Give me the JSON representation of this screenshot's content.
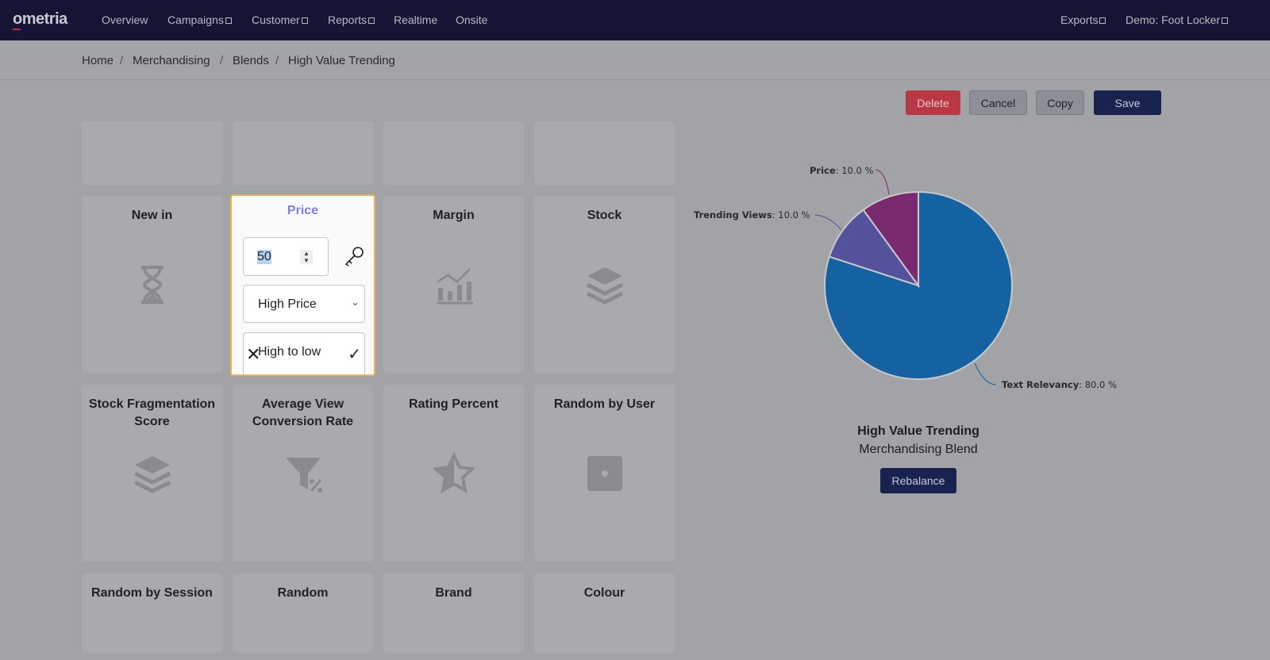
{
  "nav": {
    "logo": "ometria",
    "items": [
      "Overview",
      "Campaigns",
      "Customer",
      "Reports",
      "Realtime",
      "Onsite"
    ],
    "exports": "Exports",
    "account": "Demo: Foot Locker"
  },
  "breadcrumb": [
    "Home",
    "Merchandising",
    "Blends",
    "High Value Trending"
  ],
  "actions": {
    "delete": "Delete",
    "cancel": "Cancel",
    "copy": "Copy",
    "save": "Save"
  },
  "cards": [
    {
      "title": "",
      "icon": ""
    },
    {
      "title": "",
      "icon": ""
    },
    {
      "title": "",
      "icon": ""
    },
    {
      "title": "",
      "icon": ""
    },
    {
      "title": "New in",
      "icon": "hourglass-icon"
    },
    {
      "title": "Price",
      "icon": ""
    },
    {
      "title": "Margin",
      "icon": "chart-icon"
    },
    {
      "title": "Stock",
      "icon": "layers-icon"
    },
    {
      "title": "Stock Fragmentation Score",
      "icon": "layers-icon"
    },
    {
      "title": "Average View Conversion Rate",
      "icon": "funnel-percent-icon"
    },
    {
      "title": "Rating Percent",
      "icon": "star-icon"
    },
    {
      "title": "Random by User",
      "icon": "dice-icon"
    },
    {
      "title": "Random by Session",
      "icon": ""
    },
    {
      "title": "Random",
      "icon": ""
    },
    {
      "title": "Brand",
      "icon": ""
    },
    {
      "title": "Colour",
      "icon": ""
    }
  ],
  "price_card": {
    "title": "Price",
    "weight": "50",
    "type": "High Price",
    "order": "High to low",
    "colors": {
      "title": "#7b7ff0",
      "border": "#f0b24a"
    }
  },
  "chart_data": {
    "type": "pie",
    "slices": [
      {
        "label": "Text Relevancy",
        "value": 80.0,
        "color": "#1462a2"
      },
      {
        "label": "Trending Views",
        "value": 10.0,
        "color": "#54529c"
      },
      {
        "label": "Price",
        "value": 10.0,
        "color": "#7a2a70"
      }
    ]
  },
  "blend": {
    "title": "High Value Trending",
    "subtitle": "Merchandising Blend",
    "rebalance": "Rebalance"
  }
}
